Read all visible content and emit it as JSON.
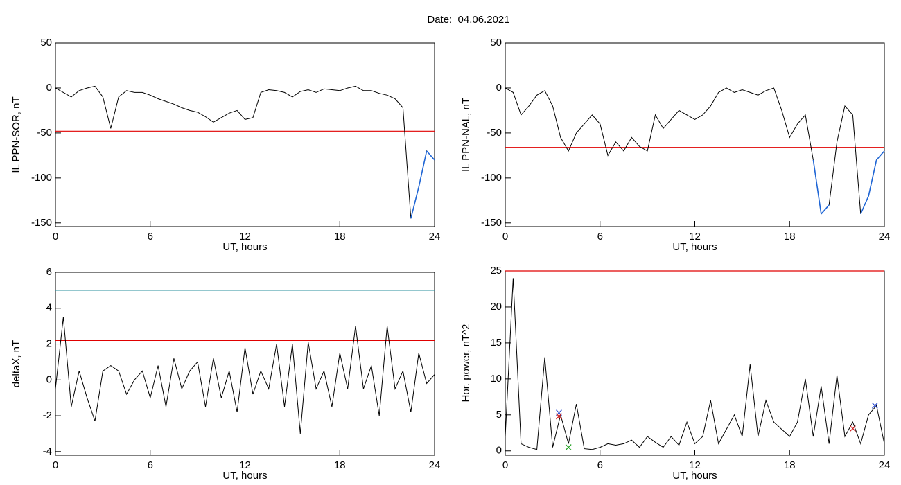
{
  "title": "Date:  04.06.2021",
  "chart_data": [
    {
      "type": "line",
      "ylabel": "IL PPN-SOR, nT",
      "xlabel": "UT, hours",
      "x": [
        0,
        0.5,
        1,
        1.5,
        2,
        2.5,
        3,
        3.5,
        4,
        4.5,
        5,
        5.5,
        6,
        6.5,
        7,
        7.5,
        8,
        8.5,
        9,
        9.5,
        10,
        10.5,
        11,
        11.5,
        12,
        12.5,
        13,
        13.5,
        14,
        14.5,
        15,
        15.5,
        16,
        16.5,
        17,
        17.5,
        18,
        18.5,
        19,
        19.5,
        20,
        20.5,
        21,
        21.5,
        22,
        22.5,
        23,
        23.5,
        24
      ],
      "series": [
        {
          "color": "#000000",
          "below_color": "#1f66d6",
          "values": [
            0,
            -5,
            -10,
            -3,
            0,
            2,
            -10,
            -45,
            -10,
            -3,
            -5,
            -5,
            -8,
            -12,
            -15,
            -18,
            -22,
            -25,
            -27,
            -32,
            -38,
            -33,
            -28,
            -25,
            -35,
            -33,
            -5,
            -2,
            -3,
            -5,
            -10,
            -4,
            -2,
            -5,
            -1,
            -2,
            -3,
            0,
            2,
            -3,
            -3,
            -6,
            -8,
            -12,
            -22,
            -145,
            -110,
            -70,
            -80
          ]
        }
      ],
      "hlines": [
        {
          "value": -48,
          "color": "#e00000"
        }
      ],
      "xlim": [
        0,
        24
      ],
      "xticks": [
        0,
        6,
        12,
        18,
        24
      ],
      "ylim": [
        -154,
        50
      ],
      "yticks": [
        -150,
        -100,
        -50,
        0,
        50
      ]
    },
    {
      "type": "line",
      "ylabel": "IL PPN-NAL, nT",
      "xlabel": "UT, hours",
      "x": [
        0,
        0.5,
        1,
        1.5,
        2,
        2.5,
        3,
        3.5,
        4,
        4.5,
        5,
        5.5,
        6,
        6.5,
        7,
        7.5,
        8,
        8.5,
        9,
        9.5,
        10,
        10.5,
        11,
        11.5,
        12,
        12.5,
        13,
        13.5,
        14,
        14.5,
        15,
        15.5,
        16,
        16.5,
        17,
        17.5,
        18,
        18.5,
        19,
        19.5,
        20,
        20.5,
        21,
        21.5,
        22,
        22.5,
        23,
        23.5,
        24
      ],
      "series": [
        {
          "color": "#000000",
          "below_color": "#1f66d6",
          "values": [
            0,
            -5,
            -30,
            -20,
            -8,
            -3,
            -20,
            -55,
            -70,
            -50,
            -40,
            -30,
            -40,
            -75,
            -60,
            -70,
            -55,
            -65,
            -70,
            -30,
            -45,
            -35,
            -25,
            -30,
            -35,
            -30,
            -20,
            -5,
            0,
            -5,
            -2,
            -5,
            -8,
            -3,
            0,
            -25,
            -55,
            -40,
            -30,
            -80,
            -140,
            -130,
            -60,
            -20,
            -30,
            -140,
            -120,
            -80,
            -70
          ]
        }
      ],
      "hlines": [
        {
          "value": -66,
          "color": "#e00000"
        }
      ],
      "xlim": [
        0,
        24
      ],
      "xticks": [
        0,
        6,
        12,
        18,
        24
      ],
      "ylim": [
        -154,
        50
      ],
      "yticks": [
        -150,
        -100,
        -50,
        0,
        50
      ]
    },
    {
      "type": "line",
      "ylabel": "deltaX, nT",
      "xlabel": "UT, hours",
      "x": [
        0,
        0.5,
        1,
        1.5,
        2,
        2.5,
        3,
        3.5,
        4,
        4.5,
        5,
        5.5,
        6,
        6.5,
        7,
        7.5,
        8,
        8.5,
        9,
        9.5,
        10,
        10.5,
        11,
        11.5,
        12,
        12.5,
        13,
        13.5,
        14,
        14.5,
        15,
        15.5,
        16,
        16.5,
        17,
        17.5,
        18,
        18.5,
        19,
        19.5,
        20,
        20.5,
        21,
        21.5,
        22,
        22.5,
        23,
        23.5,
        24
      ],
      "series": [
        {
          "color": "#000000",
          "values": [
            -0.5,
            3.5,
            -1.5,
            0.5,
            -1,
            -2.3,
            0.5,
            0.8,
            0.5,
            -0.8,
            0,
            0.5,
            -1,
            0.8,
            -1.5,
            1.2,
            -0.5,
            0.5,
            1,
            -1.5,
            1.2,
            -1,
            0.5,
            -1.8,
            1.8,
            -0.8,
            0.5,
            -0.5,
            2,
            -1.5,
            2,
            -3,
            2.1,
            -0.5,
            0.5,
            -1.5,
            1.5,
            -0.5,
            3,
            -0.5,
            0.8,
            -2,
            3,
            -0.5,
            0.5,
            -1.8,
            1.5,
            -0.2,
            0.3
          ]
        }
      ],
      "hlines": [
        {
          "value": 2.2,
          "color": "#e00000"
        },
        {
          "value": 5,
          "color": "#2a8f9c"
        }
      ],
      "xlim": [
        0,
        24
      ],
      "xticks": [
        0,
        6,
        12,
        18,
        24
      ],
      "ylim": [
        -4.2,
        6
      ],
      "yticks": [
        -4,
        -2,
        0,
        2,
        4,
        6
      ]
    },
    {
      "type": "line",
      "ylabel": "Hor. power, nT^2",
      "xlabel": "UT, hours",
      "x": [
        0,
        0.5,
        1,
        1.5,
        2,
        2.5,
        3,
        3.5,
        4,
        4.5,
        5,
        5.5,
        6,
        6.5,
        7,
        7.5,
        8,
        8.5,
        9,
        9.5,
        10,
        10.5,
        11,
        11.5,
        12,
        12.5,
        13,
        13.5,
        14,
        14.5,
        15,
        15.5,
        16,
        16.5,
        17,
        17.5,
        18,
        18.5,
        19,
        19.5,
        20,
        20.5,
        21,
        21.5,
        22,
        22.5,
        23,
        23.5,
        24
      ],
      "series": [
        {
          "color": "#000000",
          "values": [
            2,
            24,
            1,
            0.5,
            0.2,
            13,
            0.5,
            5,
            1,
            6.5,
            0.3,
            0.2,
            0.5,
            1,
            0.8,
            1,
            1.5,
            0.5,
            2,
            1.2,
            0.5,
            2,
            0.8,
            4,
            1,
            2,
            7,
            1,
            3,
            5,
            2,
            12,
            2,
            7,
            4,
            3,
            2,
            4,
            10,
            2,
            9,
            1,
            10.5,
            2,
            4,
            1,
            5,
            6.3,
            1
          ]
        }
      ],
      "hlines": [
        {
          "value": 25,
          "color": "#e00000"
        }
      ],
      "markers": [
        {
          "x": 3.4,
          "y": 5.3,
          "color": "#3050d0"
        },
        {
          "x": 3.4,
          "y": 4.8,
          "color": "#d02020"
        },
        {
          "x": 23.4,
          "y": 6.3,
          "color": "#3050d0"
        },
        {
          "x": 22.0,
          "y": 3.1,
          "color": "#d02020"
        },
        {
          "x": 4.0,
          "y": 0.5,
          "color": "#20a020"
        }
      ],
      "xlim": [
        0,
        24
      ],
      "xticks": [
        0,
        6,
        12,
        18,
        24
      ],
      "ylim": [
        -0.6,
        25
      ],
      "yticks": [
        0,
        5,
        10,
        15,
        20,
        25
      ]
    }
  ]
}
